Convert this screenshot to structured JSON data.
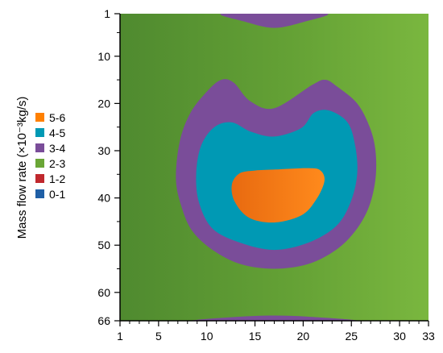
{
  "chart_data": {
    "type": "heatmap",
    "title": "",
    "xlabel": "",
    "ylabel": "Mass flow rate (×10⁻³kg/s)",
    "x_ticks": [
      "1",
      "5",
      "10",
      "15",
      "20",
      "25",
      "30",
      "33"
    ],
    "x_tick_values": [
      1,
      5,
      10,
      15,
      20,
      25,
      30,
      33
    ],
    "y_ticks": [
      "1",
      "10",
      "20",
      "30",
      "40",
      "50",
      "60",
      "66"
    ],
    "y_tick_values": [
      1,
      10,
      20,
      30,
      40,
      50,
      60,
      66
    ],
    "xlim": [
      1,
      33
    ],
    "ylim": [
      1,
      66
    ],
    "y_reversed": true,
    "grid": false,
    "legend_position": "left",
    "legend": [
      {
        "label": "5-6",
        "color": "#ff8000"
      },
      {
        "label": "4-5",
        "color": "#0099b4"
      },
      {
        "label": "3-4",
        "color": "#7a4d99"
      },
      {
        "label": "2-3",
        "color": "#6aa636"
      },
      {
        "label": "1-2",
        "color": "#c0282d"
      },
      {
        "label": "0-1",
        "color": "#1f5fa6"
      }
    ],
    "regions": [
      {
        "level": "3-4",
        "color": "#7a4d99",
        "outline": [
          [
            17,
            1
          ],
          [
            22.5,
            1
          ],
          [
            20.3,
            2.6
          ],
          [
            17,
            4
          ],
          [
            13.8,
            2.6
          ],
          [
            11.5,
            1
          ]
        ]
      },
      {
        "level": "3-4",
        "color": "#7a4d99",
        "outline": [
          [
            17,
            66
          ],
          [
            25.5,
            66
          ],
          [
            21,
            65.2
          ],
          [
            17,
            64.9
          ],
          [
            13,
            65.2
          ],
          [
            8.5,
            66
          ]
        ]
      },
      {
        "level": "3-4",
        "color": "#7a4d99",
        "outline": [
          [
            17,
            21
          ],
          [
            21,
            16
          ],
          [
            22.3,
            15
          ],
          [
            23.5,
            16.4
          ],
          [
            25.6,
            20
          ],
          [
            26.9,
            25
          ],
          [
            27.5,
            30
          ],
          [
            27.5,
            36
          ],
          [
            26.8,
            42
          ],
          [
            25.4,
            47
          ],
          [
            23.4,
            51
          ],
          [
            20.5,
            54
          ],
          [
            17,
            55
          ],
          [
            13.5,
            54
          ],
          [
            10.6,
            51
          ],
          [
            8.5,
            47
          ],
          [
            7.4,
            42
          ],
          [
            6.8,
            36
          ],
          [
            7.2,
            28
          ],
          [
            8.3,
            22
          ],
          [
            10,
            17.5
          ],
          [
            11.5,
            15
          ],
          [
            12.8,
            15.6
          ],
          [
            14.5,
            19.5
          ]
        ]
      },
      {
        "level": "4-5",
        "color": "#0099b4",
        "outline": [
          [
            17,
            27
          ],
          [
            19.8,
            25.2
          ],
          [
            21.1,
            22
          ],
          [
            22.7,
            21.5
          ],
          [
            24.6,
            24
          ],
          [
            25.4,
            29
          ],
          [
            25.6,
            35
          ],
          [
            24.9,
            41
          ],
          [
            23.4,
            46
          ],
          [
            20.5,
            49.5
          ],
          [
            17,
            51
          ],
          [
            13.5,
            49.5
          ],
          [
            10.6,
            46.5
          ],
          [
            9.2,
            41
          ],
          [
            8.9,
            35
          ],
          [
            9.4,
            29
          ],
          [
            10.8,
            25
          ],
          [
            12.6,
            24
          ],
          [
            14.6,
            26
          ]
        ]
      },
      {
        "level": "5-6",
        "color": "#ff8000",
        "outline": [
          [
            17,
            34
          ],
          [
            20.5,
            33.7
          ],
          [
            21.8,
            34.2
          ],
          [
            22.2,
            36.5
          ],
          [
            21.3,
            40.5
          ],
          [
            19.8,
            43.7
          ],
          [
            17,
            45.2
          ],
          [
            14.4,
            44.2
          ],
          [
            12.9,
            40.8
          ],
          [
            12.6,
            37.2
          ],
          [
            13.4,
            34.8
          ],
          [
            15,
            34.2
          ]
        ]
      }
    ]
  }
}
